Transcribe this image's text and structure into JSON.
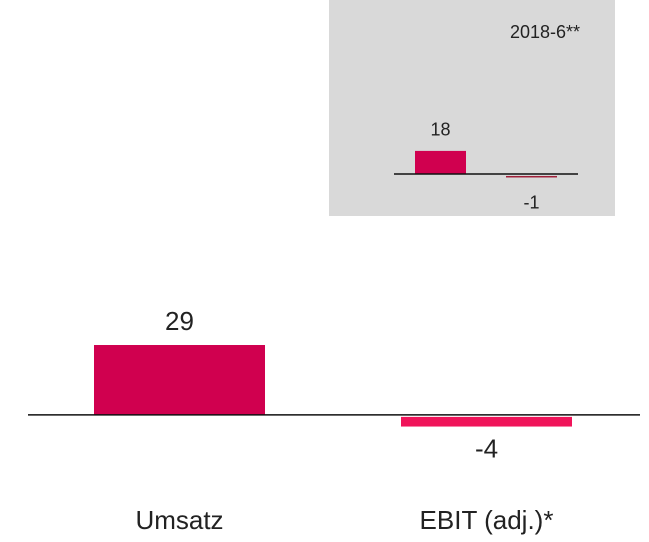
{
  "chart_data": [
    {
      "type": "bar",
      "categories": [
        "Umsatz",
        "EBIT (adj.)*"
      ],
      "values": [
        29,
        -4
      ],
      "colors": [
        "#d0004f",
        "#f0145a"
      ],
      "ylim": [
        -10,
        40
      ]
    },
    {
      "type": "bar",
      "title": "2018-6**",
      "categories": [
        null,
        null
      ],
      "values": [
        18,
        -1
      ],
      "colors": [
        "#d0004f",
        "#a0203a"
      ],
      "ylim": [
        -10,
        40
      ]
    }
  ]
}
